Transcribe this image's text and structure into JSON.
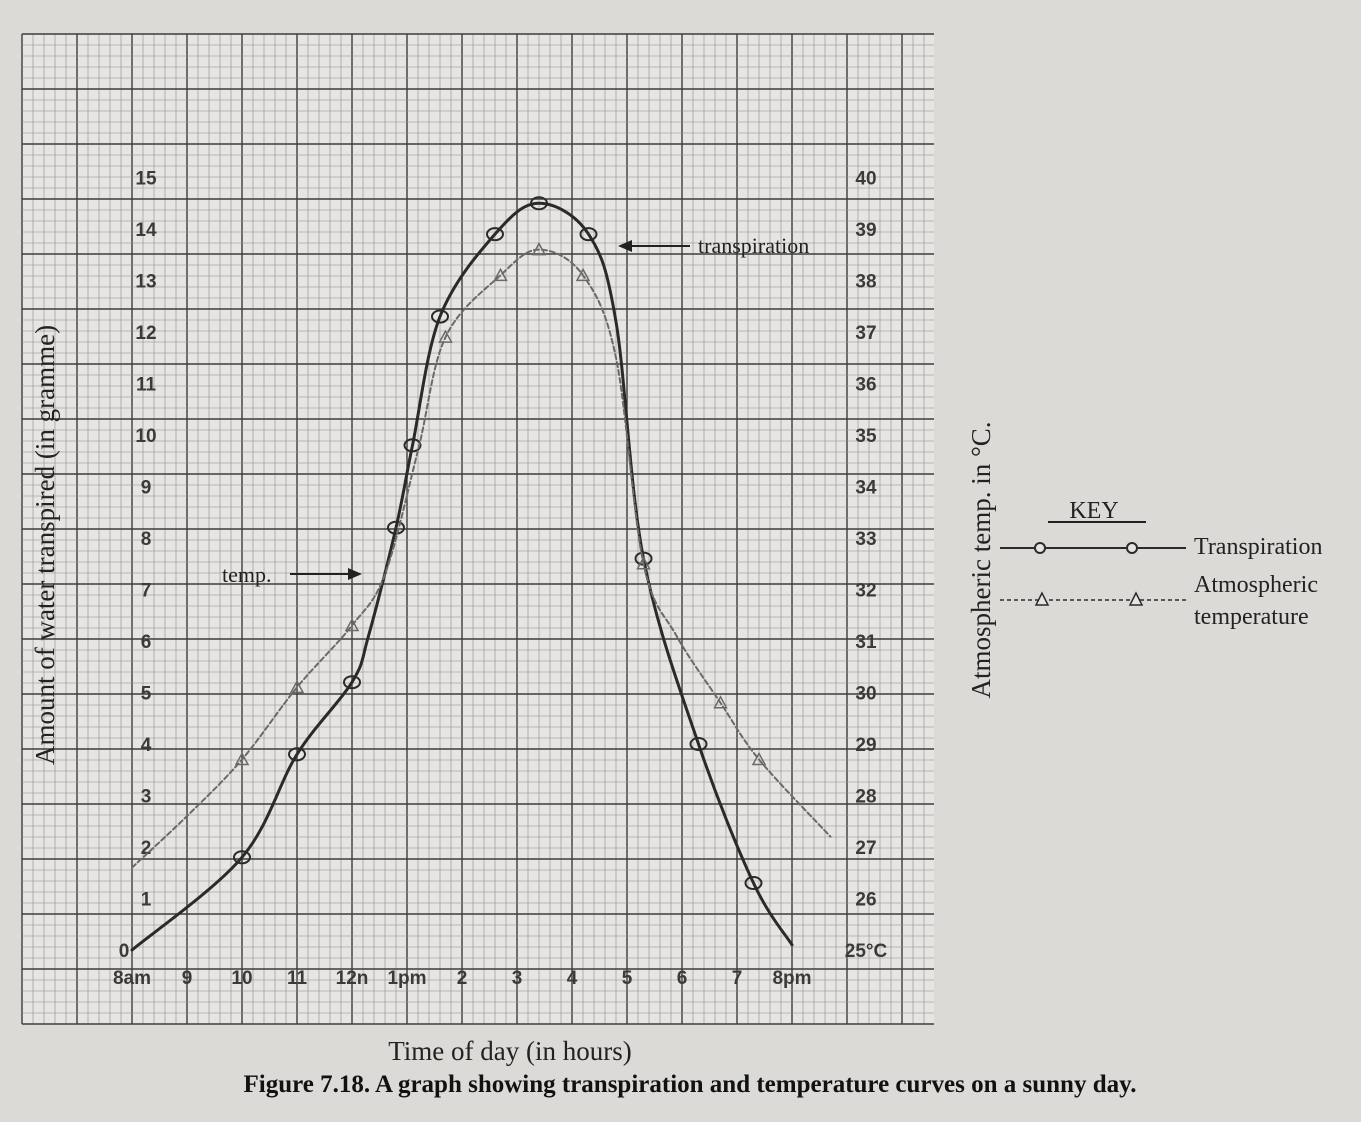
{
  "chart_data": {
    "type": "line",
    "x": [
      "8am",
      "9",
      "10",
      "11",
      "12n",
      "1pm",
      "2",
      "3",
      "4",
      "5",
      "6",
      "7",
      "8pm"
    ],
    "xlabel": "Time of day (in hours)",
    "ylabel": "Amount of water transpired (in gramme)",
    "ylabel_right": "Atmospheric temp. in °C.",
    "ylim": [
      0,
      15
    ],
    "ylim_right": [
      25,
      40
    ],
    "y_ticks": [
      "1",
      "2",
      "3",
      "4",
      "5",
      "6",
      "7",
      "8",
      "9",
      "10",
      "11",
      "12",
      "13",
      "14",
      "15"
    ],
    "y_right_ticks": [
      "25°C",
      "26",
      "27",
      "28",
      "29",
      "30",
      "31",
      "32",
      "33",
      "34",
      "35",
      "36",
      "37",
      "38",
      "39",
      "40"
    ],
    "y_origin_label": "0",
    "grid": true,
    "series": [
      {
        "name": "Transpiration",
        "axis": "left",
        "color": "#2a2a2a",
        "marker": "circle",
        "points": [
          {
            "x": 8.0,
            "y": 0.0,
            "marked": false
          },
          {
            "x": 10.0,
            "y": 1.8,
            "marked": true
          },
          {
            "x": 11.0,
            "y": 3.8,
            "marked": true
          },
          {
            "x": 12.0,
            "y": 5.2,
            "marked": true
          },
          {
            "x": 12.3,
            "y": 6.1,
            "marked": false
          },
          {
            "x": 12.8,
            "y": 8.2,
            "marked": true
          },
          {
            "x": 13.1,
            "y": 9.8,
            "marked": true
          },
          {
            "x": 13.6,
            "y": 12.3,
            "marked": true
          },
          {
            "x": 14.6,
            "y": 13.9,
            "marked": true
          },
          {
            "x": 15.4,
            "y": 14.5,
            "marked": true
          },
          {
            "x": 16.3,
            "y": 13.9,
            "marked": true
          },
          {
            "x": 16.8,
            "y": 12.2,
            "marked": false
          },
          {
            "x": 17.3,
            "y": 7.6,
            "marked": true
          },
          {
            "x": 18.3,
            "y": 4.0,
            "marked": true
          },
          {
            "x": 19.3,
            "y": 1.3,
            "marked": true
          },
          {
            "x": 20.0,
            "y": 0.1,
            "marked": false
          }
        ]
      },
      {
        "name": "Atmospheric temperature",
        "axis": "right",
        "color": "#6a6a6a",
        "marker": "triangle",
        "points": [
          {
            "x": 8.0,
            "y": 26.6,
            "marked": false
          },
          {
            "x": 9.0,
            "y": 27.6,
            "marked": false
          },
          {
            "x": 10.0,
            "y": 28.7,
            "marked": true
          },
          {
            "x": 11.0,
            "y": 30.1,
            "marked": true
          },
          {
            "x": 12.0,
            "y": 31.3,
            "marked": true
          },
          {
            "x": 12.6,
            "y": 32.3,
            "marked": false
          },
          {
            "x": 13.2,
            "y": 34.7,
            "marked": false
          },
          {
            "x": 13.7,
            "y": 36.9,
            "marked": true
          },
          {
            "x": 14.7,
            "y": 38.1,
            "marked": true
          },
          {
            "x": 15.4,
            "y": 38.6,
            "marked": true
          },
          {
            "x": 16.2,
            "y": 38.1,
            "marked": true
          },
          {
            "x": 16.8,
            "y": 36.5,
            "marked": false
          },
          {
            "x": 17.3,
            "y": 32.5,
            "marked": true
          },
          {
            "x": 17.9,
            "y": 31.1,
            "marked": false
          },
          {
            "x": 18.7,
            "y": 29.8,
            "marked": true
          },
          {
            "x": 19.4,
            "y": 28.7,
            "marked": true
          },
          {
            "x": 20.7,
            "y": 27.2,
            "marked": false
          }
        ]
      }
    ],
    "annotations": [
      "transpiration",
      "temp."
    ],
    "legend": {
      "title": "KEY",
      "position": "right",
      "items": [
        "Transpiration",
        "Atmospheric temperature"
      ],
      "item_lines": [
        [
          "Transpiration"
        ],
        [
          "Atmospheric",
          "temperature"
        ]
      ]
    },
    "caption": "Figure 7.18. A graph showing transpiration and temperature curves on a sunny day."
  },
  "colors": {
    "page": "#dcdad7",
    "paper": "#e7e5e2",
    "ink": "#2a2a2a",
    "temp_ink": "#6a6a6a"
  }
}
